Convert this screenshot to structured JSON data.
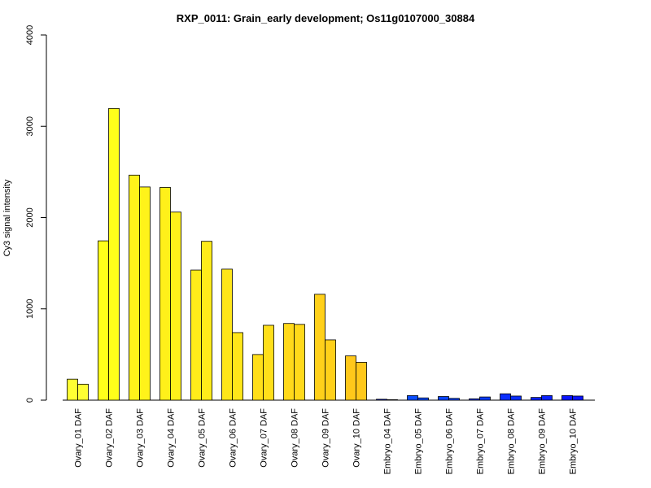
{
  "chart_data": {
    "type": "bar",
    "title": "RXP_0011: Grain_early development; Os11g0107000_30884",
    "xlabel": "",
    "ylabel": "Cy3 signal intensity",
    "ylim": [
      0,
      4000
    ],
    "yticks": [
      0,
      1000,
      2000,
      3000,
      4000
    ],
    "grid": false,
    "categories": [
      "Ovary_01 DAF",
      "Ovary_02 DAF",
      "Ovary_03 DAF",
      "Ovary_04 DAF",
      "Ovary_05 DAF",
      "Ovary_06 DAF",
      "Ovary_07 DAF",
      "Ovary_08 DAF",
      "Ovary_09 DAF",
      "Ovary_10 DAF",
      "Embryo_04 DAF",
      "Embryo_05 DAF",
      "Embryo_06 DAF",
      "Embryo_07 DAF",
      "Embryo_08 DAF",
      "Embryo_09 DAF",
      "Embryo_10 DAF"
    ],
    "series": [
      {
        "values": [
          230,
          1745,
          2465,
          2330,
          1425,
          1435,
          500,
          840,
          1160,
          485,
          10,
          50,
          40,
          15,
          70,
          30,
          50
        ]
      },
      {
        "values": [
          175,
          3195,
          2335,
          2060,
          1740,
          740,
          820,
          830,
          660,
          415,
          5,
          25,
          20,
          35,
          45,
          50,
          45
        ]
      }
    ],
    "colors": [
      "#ffff33",
      "#ffff1a",
      "#fff31a",
      "#fff01a",
      "#ffec1a",
      "#ffe61a",
      "#ffdf1a",
      "#ffd91a",
      "#ffd01a",
      "#ffc81a",
      "#0019ff",
      "#0a4dff",
      "#0a44ff",
      "#0a3bff",
      "#0a2eff",
      "#0a22ff",
      "#0a14ff"
    ]
  }
}
